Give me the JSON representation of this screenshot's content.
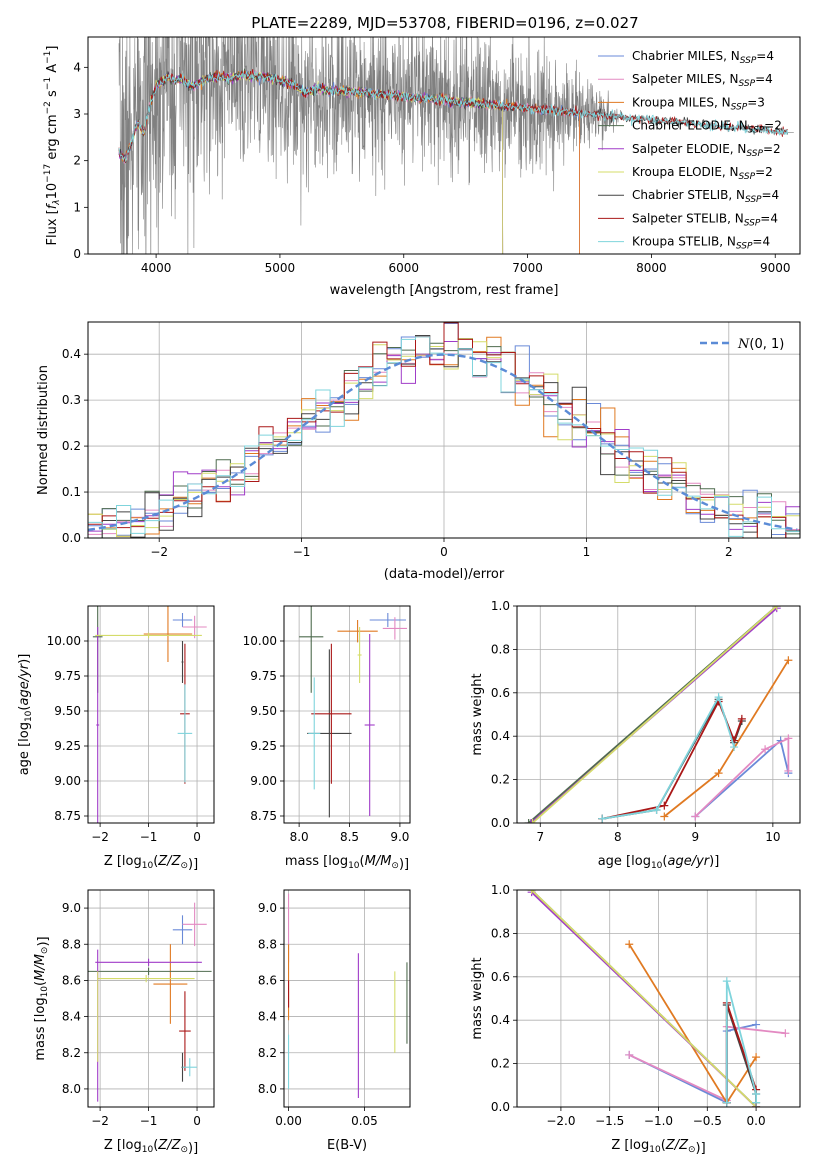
{
  "title": "PLATE=2289, MJD=53708, FIBERID=0196, z=0.027",
  "colors": {
    "Chabrier MILES": "#6a8ad8",
    "Salpeter MILES": "#e38ac2",
    "Kroupa MILES": "#e07a22",
    "Chabrier ELODIE": "#4f6b4f",
    "Salpeter ELODIE": "#a03cc8",
    "Kroupa ELODIE": "#d4dc6a",
    "Chabrier STELIB": "#444444",
    "Salpeter STELIB": "#aa1818",
    "Kroupa STELIB": "#7fd4dc",
    "data": "#808080",
    "normal": "#5b8bd6"
  },
  "chart_data": [
    {
      "id": "spectrum",
      "type": "line",
      "xlabel": "wavelength [Angstrom, rest frame]",
      "ylabel": "Flux [f_λ 10^-17 erg cm^-2 s^-1 A^-1]",
      "xlim": [
        3450,
        9200
      ],
      "ylim": [
        0,
        4.65
      ],
      "xticks": [
        4000,
        5000,
        6000,
        7000,
        8000,
        9000
      ],
      "yticks": [
        0,
        1,
        2,
        3,
        4
      ],
      "grid": false,
      "legend_position": "top-right",
      "legend": [
        {
          "name": "Chabrier MILES",
          "label": "Chabrier MILES, N",
          "sub": "SSP",
          "n": "=4"
        },
        {
          "name": "Salpeter MILES",
          "label": "Salpeter MILES, N",
          "sub": "SSP",
          "n": "=4"
        },
        {
          "name": "Kroupa MILES",
          "label": "Kroupa MILES, N",
          "sub": "SSP",
          "n": "=3"
        },
        {
          "name": "Chabrier ELODIE",
          "label": "Chabrier ELODIE, N",
          "sub": "SSP",
          "n": "=2"
        },
        {
          "name": "Salpeter ELODIE",
          "label": "Salpeter ELODIE, N",
          "sub": "SSP",
          "n": "=2"
        },
        {
          "name": "Kroupa ELODIE",
          "label": "Kroupa ELODIE, N",
          "sub": "SSP",
          "n": "=2"
        },
        {
          "name": "Chabrier STELIB",
          "label": "Chabrier STELIB, N",
          "sub": "SSP",
          "n": "=4"
        },
        {
          "name": "Salpeter STELIB",
          "label": "Salpeter STELIB, N",
          "sub": "SSP",
          "n": "=4"
        },
        {
          "name": "Kroupa STELIB",
          "label": "Kroupa STELIB, N",
          "sub": "SSP",
          "n": "=4"
        }
      ],
      "model_continuum": {
        "wavelength": [
          3700,
          3750,
          3800,
          3850,
          3900,
          3950,
          4000,
          4050,
          4100,
          4150,
          4200,
          4300,
          4400,
          4500,
          4600,
          4700,
          4800,
          4900,
          5000,
          5100,
          5200,
          5300,
          5400,
          5500,
          5700,
          5900,
          6100,
          6300,
          6500,
          6700,
          6900,
          7100,
          7300,
          7500,
          7700,
          7900,
          8100,
          8300,
          8500,
          8700,
          8900,
          9100
        ],
        "flux": [
          2.2,
          2.0,
          2.4,
          2.8,
          2.6,
          3.2,
          3.6,
          3.7,
          3.8,
          3.7,
          3.75,
          3.6,
          3.75,
          3.8,
          3.75,
          3.85,
          3.8,
          3.8,
          3.7,
          3.65,
          3.45,
          3.55,
          3.5,
          3.5,
          3.45,
          3.4,
          3.35,
          3.3,
          3.25,
          3.2,
          3.15,
          3.1,
          3.05,
          3.0,
          2.95,
          2.9,
          2.85,
          2.8,
          2.75,
          2.7,
          2.65,
          2.6
        ]
      },
      "model_ranges": {
        "Chabrier MILES": [
          3700,
          7420
        ],
        "Salpeter MILES": [
          3700,
          7420
        ],
        "Kroupa MILES": [
          3700,
          7420
        ],
        "Chabrier ELODIE": [
          3700,
          6800
        ],
        "Salpeter ELODIE": [
          3700,
          6800
        ],
        "Kroupa ELODIE": [
          3700,
          6800
        ],
        "Chabrier STELIB": [
          3700,
          9100
        ],
        "Salpeter STELIB": [
          3700,
          9100
        ],
        "Kroupa STELIB": [
          3700,
          9100
        ]
      },
      "data_noise_sigma": {
        "wavelength": [
          3700,
          4000,
          4500,
          5000,
          5500,
          6000,
          6500,
          7000,
          7500,
          7800
        ],
        "sigma": [
          1.6,
          1.5,
          1.2,
          1.0,
          0.9,
          0.8,
          0.8,
          0.75,
          0.4,
          0.0
        ]
      }
    },
    {
      "id": "residuals",
      "type": "line",
      "xlabel": "(data-model)/error",
      "ylabel": "Normed distribution",
      "xlim": [
        -2.5,
        2.5
      ],
      "ylim": [
        0,
        0.47
      ],
      "xticks": [
        -2,
        -1,
        0,
        1,
        2
      ],
      "yticks": [
        0.0,
        0.1,
        0.2,
        0.3,
        0.4
      ],
      "grid": true,
      "legend_position": "top-right",
      "normal_label": "N(0, 1)",
      "bin_width": 0.1
    },
    {
      "id": "age_vs_Z",
      "type": "scatter",
      "xlabel": "Z [log10(Z/Z⊙)]",
      "ylabel": "age  [log10(age/yr)]",
      "xlim": [
        -2.25,
        0.35
      ],
      "ylim": [
        8.7,
        10.25
      ],
      "xticks": [
        -2,
        -1,
        0
      ],
      "yticks": [
        8.75,
        9.0,
        9.25,
        9.5,
        9.75,
        10.0
      ],
      "grid": true,
      "points": [
        {
          "s": "Chabrier MILES",
          "x": -0.3,
          "y": 10.15,
          "xerr": 0.2,
          "yerr": 0.05
        },
        {
          "s": "Salpeter MILES",
          "x": -0.05,
          "y": 10.1,
          "xerr": 0.25,
          "yerr": 0.08
        },
        {
          "s": "Kroupa MILES",
          "x": -0.6,
          "y": 10.05,
          "xerr": 0.5,
          "yerr": 0.2
        },
        {
          "s": "Chabrier ELODIE",
          "x": -2.05,
          "y": 10.03,
          "xerr": 0.1,
          "yerr": 0.4
        },
        {
          "s": "Salpeter ELODIE",
          "x": -2.05,
          "y": 9.4,
          "xerr": 0.03,
          "yerr": 0.7
        },
        {
          "s": "Kroupa ELODIE",
          "x": -1.0,
          "y": 10.04,
          "xerr": 1.1,
          "yerr": 0.02
        },
        {
          "s": "Chabrier STELIB",
          "x": -0.3,
          "y": 9.85,
          "xerr": 0.02,
          "yerr": 0.15
        },
        {
          "s": "Salpeter STELIB",
          "x": -0.25,
          "y": 9.48,
          "xerr": 0.1,
          "yerr": 0.5
        },
        {
          "s": "Kroupa STELIB",
          "x": -0.25,
          "y": 9.34,
          "xerr": 0.15,
          "yerr": 0.35
        }
      ]
    },
    {
      "id": "age_vs_mass",
      "type": "scatter",
      "xlabel": "mass [log10(M/M⊙)]",
      "ylabel": "",
      "xlim": [
        7.85,
        9.1
      ],
      "ylim": [
        8.7,
        10.25
      ],
      "xticks": [
        8.0,
        8.5,
        9.0
      ],
      "yticks": [
        8.75,
        9.0,
        9.25,
        9.5,
        9.75,
        10.0
      ],
      "grid": true,
      "points": [
        {
          "s": "Chabrier MILES",
          "x": 8.88,
          "y": 10.15,
          "xerr": 0.18,
          "yerr": 0.05
        },
        {
          "s": "Salpeter MILES",
          "x": 8.95,
          "y": 10.09,
          "xerr": 0.12,
          "yerr": 0.08
        },
        {
          "s": "Kroupa MILES",
          "x": 8.58,
          "y": 10.07,
          "xerr": 0.2,
          "yerr": 0.08
        },
        {
          "s": "Chabrier ELODIE",
          "x": 8.12,
          "y": 10.03,
          "xerr": 0.12,
          "yerr": 0.4
        },
        {
          "s": "Salpeter ELODIE",
          "x": 8.7,
          "y": 9.4,
          "xerr": 0.05,
          "yerr": 0.65
        },
        {
          "s": "Kroupa ELODIE",
          "x": 8.6,
          "y": 9.9,
          "xerr": 0.02,
          "yerr": 0.2
        },
        {
          "s": "Chabrier STELIB",
          "x": 8.3,
          "y": 9.34,
          "xerr": 0.22,
          "yerr": 0.6
        },
        {
          "s": "Salpeter STELIB",
          "x": 8.32,
          "y": 9.48,
          "xerr": 0.2,
          "yerr": 0.5
        },
        {
          "s": "Kroupa STELIB",
          "x": 8.15,
          "y": 9.34,
          "xerr": 0.06,
          "yerr": 0.4
        }
      ]
    },
    {
      "id": "weight_vs_age",
      "type": "line",
      "xlabel": "age  [log10(age/yr)]",
      "ylabel": "mass weight",
      "xlim": [
        6.7,
        10.35
      ],
      "ylim": [
        0,
        1.0
      ],
      "xticks": [
        7,
        8,
        9,
        10
      ],
      "yticks": [
        0.0,
        0.2,
        0.4,
        0.6,
        0.8,
        1.0
      ],
      "grid": true,
      "series": [
        {
          "name": "Chabrier MILES",
          "x": [
            9.0,
            10.1,
            10.2
          ],
          "y": [
            0.03,
            0.38,
            0.23
          ]
        },
        {
          "name": "Salpeter MILES",
          "x": [
            9.0,
            9.9,
            10.2,
            10.2
          ],
          "y": [
            0.03,
            0.34,
            0.39,
            0.24
          ]
        },
        {
          "name": "Kroupa MILES",
          "x": [
            8.6,
            9.3,
            10.2
          ],
          "y": [
            0.03,
            0.23,
            0.75
          ]
        },
        {
          "name": "Chabrier ELODIE",
          "x": [
            6.85,
            10.05
          ],
          "y": [
            0.0,
            1.0
          ]
        },
        {
          "name": "Salpeter ELODIE",
          "x": [
            6.88,
            10.05
          ],
          "y": [
            0.0,
            0.99
          ]
        },
        {
          "name": "Kroupa ELODIE",
          "x": [
            6.9,
            10.05
          ],
          "y": [
            0.0,
            1.0
          ]
        },
        {
          "name": "Chabrier STELIB",
          "x": [
            7.8,
            8.5,
            9.3,
            9.5,
            9.6
          ],
          "y": [
            0.02,
            0.06,
            0.57,
            0.37,
            0.47
          ]
        },
        {
          "name": "Salpeter STELIB",
          "x": [
            7.8,
            8.6,
            9.3,
            9.5,
            9.6
          ],
          "y": [
            0.02,
            0.08,
            0.56,
            0.38,
            0.48
          ]
        },
        {
          "name": "Kroupa STELIB",
          "x": [
            7.8,
            8.5,
            9.3,
            9.5
          ],
          "y": [
            0.02,
            0.06,
            0.58,
            0.35
          ]
        }
      ]
    },
    {
      "id": "mass_vs_Z",
      "type": "scatter",
      "xlabel": "Z [log10(Z/Z⊙)]",
      "ylabel": "mass [log10(M/M⊙)]",
      "xlim": [
        -2.25,
        0.35
      ],
      "ylim": [
        7.9,
        9.1
      ],
      "xticks": [
        -2,
        -1,
        0
      ],
      "yticks": [
        8.0,
        8.2,
        8.4,
        8.6,
        8.8,
        9.0
      ],
      "grid": true,
      "points": [
        {
          "s": "Chabrier MILES",
          "x": -0.3,
          "y": 8.88,
          "xerr": 0.2,
          "yerr": 0.08
        },
        {
          "s": "Salpeter MILES",
          "x": -0.05,
          "y": 8.91,
          "xerr": 0.25,
          "yerr": 0.12
        },
        {
          "s": "Kroupa MILES",
          "x": -0.55,
          "y": 8.58,
          "xerr": 0.35,
          "yerr": 0.22
        },
        {
          "s": "Chabrier ELODIE",
          "x": -1.0,
          "y": 8.65,
          "xerr": 1.3,
          "yerr": 0.02
        },
        {
          "s": "Salpeter ELODIE",
          "x": -1.0,
          "y": 8.7,
          "xerr": 1.1,
          "yerr": 0.02
        },
        {
          "s": "Kroupa ELODIE",
          "x": -1.05,
          "y": 8.61,
          "xerr": 1.0,
          "yerr": 0.02
        },
        {
          "s": "Chabrier STELIB",
          "x": -0.3,
          "y": 8.12,
          "xerr": 0.02,
          "yerr": 0.08
        },
        {
          "s": "Salpeter STELIB",
          "x": -0.25,
          "y": 8.32,
          "xerr": 0.12,
          "yerr": 0.22
        },
        {
          "s": "Kroupa STELIB",
          "x": -0.15,
          "y": 8.12,
          "xerr": 0.15,
          "yerr": 0.05
        }
      ],
      "extra_bars": [
        {
          "s": "Salpeter ELODIE",
          "x": -2.05,
          "y": 8.35,
          "yerr": 0.42
        },
        {
          "s": "Kroupa ELODIE",
          "x": -2.05,
          "y": 8.4,
          "yerr": 0.25
        }
      ]
    },
    {
      "id": "mass_vs_ebv",
      "type": "scatter",
      "xlabel": "E(B-V)",
      "ylabel": "",
      "xlim": [
        -0.003,
        0.08
      ],
      "ylim": [
        7.9,
        9.1
      ],
      "xticks": [
        0.0,
        0.05
      ],
      "yticks": [
        8.0,
        8.2,
        8.4,
        8.6,
        8.8,
        9.0
      ],
      "grid": true,
      "bars": [
        {
          "s": "Salpeter MILES",
          "x": 0.0,
          "ylo": 8.7,
          "yhi": 9.08
        },
        {
          "s": "Kroupa MILES",
          "x": 0.0,
          "ylo": 8.38,
          "yhi": 8.8
        },
        {
          "s": "Salpeter STELIB",
          "x": 0.0,
          "ylo": 8.45,
          "yhi": 8.6
        },
        {
          "s": "Kroupa STELIB",
          "x": 0.0,
          "ylo": 8.0,
          "yhi": 8.3
        },
        {
          "s": "Salpeter ELODIE",
          "x": 0.046,
          "ylo": 7.95,
          "yhi": 8.75
        },
        {
          "s": "Kroupa ELODIE",
          "x": 0.07,
          "ylo": 8.2,
          "yhi": 8.65
        },
        {
          "s": "Chabrier ELODIE",
          "x": 0.078,
          "ylo": 8.25,
          "yhi": 8.7
        }
      ]
    },
    {
      "id": "weight_vs_Z",
      "type": "line",
      "xlabel": "Z [log10(Z/Z⊙)]",
      "ylabel": "mass weight",
      "xlim": [
        -2.45,
        0.45
      ],
      "ylim": [
        0,
        1.0
      ],
      "xticks": [
        -2.0,
        -1.5,
        -1.0,
        -0.5,
        0.0
      ],
      "yticks": [
        0.0,
        0.2,
        0.4,
        0.6,
        0.8,
        1.0
      ],
      "grid": true,
      "series": [
        {
          "name": "Chabrier MILES",
          "x": [
            -1.3,
            -0.3,
            -0.3,
            0.0
          ],
          "y": [
            0.24,
            0.02,
            0.35,
            0.38
          ]
        },
        {
          "name": "Salpeter MILES",
          "x": [
            -1.3,
            -0.3,
            -0.3,
            0.3
          ],
          "y": [
            0.24,
            0.03,
            0.37,
            0.34
          ]
        },
        {
          "name": "Kroupa MILES",
          "x": [
            -1.3,
            -0.3,
            0.0
          ],
          "y": [
            0.75,
            0.02,
            0.23
          ]
        },
        {
          "name": "Chabrier ELODIE",
          "x": [
            -2.3,
            0.0
          ],
          "y": [
            1.0,
            0.0
          ]
        },
        {
          "name": "Salpeter ELODIE",
          "x": [
            -2.3,
            0.0
          ],
          "y": [
            0.99,
            0.0
          ]
        },
        {
          "name": "Kroupa ELODIE",
          "x": [
            -2.3,
            0.0
          ],
          "y": [
            1.0,
            0.0
          ]
        },
        {
          "name": "Chabrier STELIB",
          "x": [
            -0.3,
            -0.3,
            0.0,
            0.0
          ],
          "y": [
            0.02,
            0.47,
            0.06,
            0.02
          ]
        },
        {
          "name": "Salpeter STELIB",
          "x": [
            -0.3,
            -0.3,
            0.0,
            0.0
          ],
          "y": [
            0.02,
            0.48,
            0.08,
            0.0
          ]
        },
        {
          "name": "Kroupa STELIB",
          "x": [
            -0.3,
            -0.3,
            0.0,
            0.0
          ],
          "y": [
            0.02,
            0.58,
            0.06,
            0.02
          ]
        }
      ]
    }
  ]
}
